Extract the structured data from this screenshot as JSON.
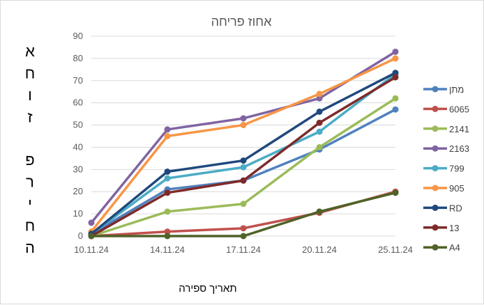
{
  "chart_data": {
    "type": "line",
    "title": "אחוז פריחה",
    "xlabel": "תאריך ספירה",
    "ylabel": "אחוז פריחה",
    "categories": [
      "10.11.24",
      "14.11.24",
      "17.11.24",
      "20.11.24",
      "25.11.24"
    ],
    "ylim": [
      0,
      90
    ],
    "yticks": [
      0,
      10,
      20,
      30,
      40,
      50,
      60,
      70,
      80,
      90
    ],
    "grid": true,
    "legend_position": "right",
    "series": [
      {
        "name": "מתן",
        "color": "#4f81bd",
        "values": [
          1,
          21,
          25,
          39,
          57
        ]
      },
      {
        "name": "6065",
        "color": "#c0504d",
        "values": [
          0,
          2,
          3.5,
          10.5,
          20
        ]
      },
      {
        "name": "2141",
        "color": "#9bbb59",
        "values": [
          0,
          11,
          14.5,
          40,
          62
        ]
      },
      {
        "name": "2163",
        "color": "#8064a2",
        "values": [
          6,
          48,
          53,
          62,
          83
        ]
      },
      {
        "name": "799",
        "color": "#4bacc6",
        "values": [
          1,
          26,
          31,
          47,
          73
        ]
      },
      {
        "name": "905",
        "color": "#f79646",
        "values": [
          2,
          45,
          50,
          64,
          80
        ]
      },
      {
        "name": "RD",
        "color": "#1f497d",
        "values": [
          1,
          29,
          34,
          56,
          73.5
        ]
      },
      {
        "name": "13",
        "color": "#7f2a2a",
        "values": [
          0,
          19.5,
          25,
          51,
          71.5
        ]
      },
      {
        "name": "A4",
        "color": "#4f6228",
        "values": [
          0,
          0,
          0,
          11,
          19.5
        ]
      }
    ]
  }
}
